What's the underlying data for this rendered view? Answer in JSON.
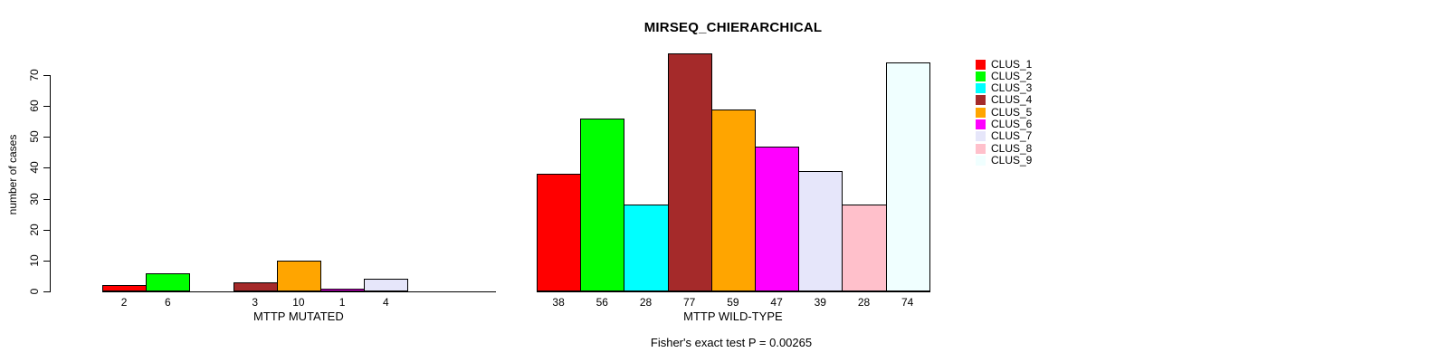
{
  "chart_data": {
    "type": "bar",
    "title": "MIRSEQ_CHIERARCHICAL",
    "ylabel": "number of cases",
    "ylim": [
      0,
      70
    ],
    "yticks": [
      0,
      10,
      20,
      30,
      40,
      50,
      60,
      70
    ],
    "grid": false,
    "legend_position": "top-right-inside",
    "annotation": "Fisher's exact test P = 0.00265",
    "legend": [
      {
        "label": "CLUS_1",
        "color": "#FF0000"
      },
      {
        "label": "CLUS_2",
        "color": "#00FF00"
      },
      {
        "label": "CLUS_3",
        "color": "#00FFFF"
      },
      {
        "label": "CLUS_4",
        "color": "#A52A2A"
      },
      {
        "label": "CLUS_5",
        "color": "#FFA500"
      },
      {
        "label": "CLUS_6",
        "color": "#FF00FF"
      },
      {
        "label": "CLUS_7",
        "color": "#E6E6FA"
      },
      {
        "label": "CLUS_8",
        "color": "#FFC0CB"
      },
      {
        "label": "CLUS_9",
        "color": "#F0FFFF"
      }
    ],
    "categories": [
      "CLUS_1",
      "CLUS_2",
      "CLUS_3",
      "CLUS_4",
      "CLUS_5",
      "CLUS_6",
      "CLUS_7",
      "CLUS_8",
      "CLUS_9"
    ],
    "groups": [
      {
        "xlabel": "MTTP MUTATED",
        "values": [
          2,
          6,
          0,
          3,
          10,
          1,
          4,
          0,
          0
        ]
      },
      {
        "xlabel": "MTTP WILD-TYPE",
        "values": [
          38,
          56,
          28,
          77,
          59,
          47,
          39,
          28,
          74
        ]
      }
    ]
  }
}
